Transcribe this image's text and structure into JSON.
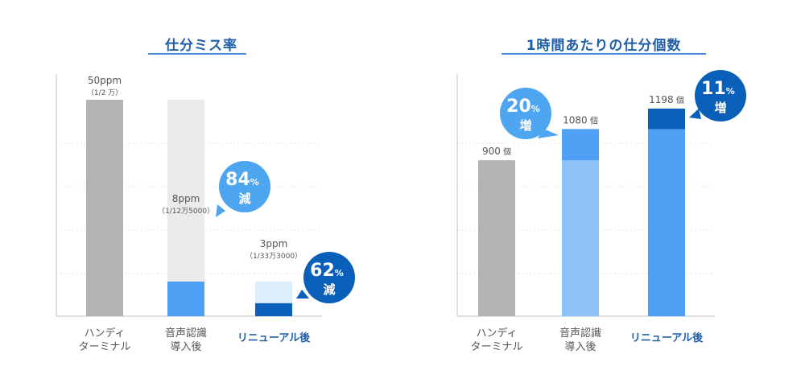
{
  "colors": {
    "gray": "#b3b3b3",
    "light_gray": "#ebebeb",
    "blue_mid": "#4ea0f4",
    "blue_light": "#8fc2f8",
    "blue_pale": "#deedfc",
    "blue_dark": "#0a5fb8",
    "bubble_light": "#4ea6f0",
    "bubble_dark": "#0a5fb8",
    "title": "#1f5fa8"
  },
  "chart_data": [
    {
      "type": "bar",
      "title": "仕分ミス率",
      "categories": [
        [
          "ハンディ",
          "ターミナル"
        ],
        [
          "音声認識",
          "導入後"
        ],
        [
          "リニューアル後"
        ]
      ],
      "values_ppm": [
        50,
        8,
        3
      ],
      "value_labels": [
        "50ppm",
        "8ppm",
        "3ppm"
      ],
      "sub_labels": [
        "（1/2 万）",
        "（1/12万5000）",
        "（1/33万3000）"
      ],
      "reference_bars": [
        null,
        50,
        8
      ],
      "callouts": [
        {
          "percent": "84",
          "unit": "%",
          "text": "減",
          "style": "light"
        },
        {
          "percent": "62",
          "unit": "%",
          "text": "減",
          "style": "dark"
        }
      ],
      "highlight_category_index": 2,
      "ylim": [
        0,
        50
      ],
      "grid": true
    },
    {
      "type": "bar",
      "title": "1時間あたりの仕分個数",
      "categories": [
        [
          "ハンディ",
          "ターミナル"
        ],
        [
          "音声認識",
          "導入後"
        ],
        [
          "リニューアル後"
        ]
      ],
      "values": [
        900,
        1080,
        1198
      ],
      "value_labels": [
        "900",
        "1080",
        "1198"
      ],
      "unit": "個",
      "base_bars": [
        null,
        900,
        1080
      ],
      "callouts": [
        {
          "percent": "20",
          "unit": "%",
          "text": "増",
          "style": "light"
        },
        {
          "percent": "11",
          "unit": "%",
          "text": "増",
          "style": "dark"
        }
      ],
      "highlight_category_index": 2,
      "ylim": [
        0,
        1198
      ],
      "grid": true
    }
  ]
}
